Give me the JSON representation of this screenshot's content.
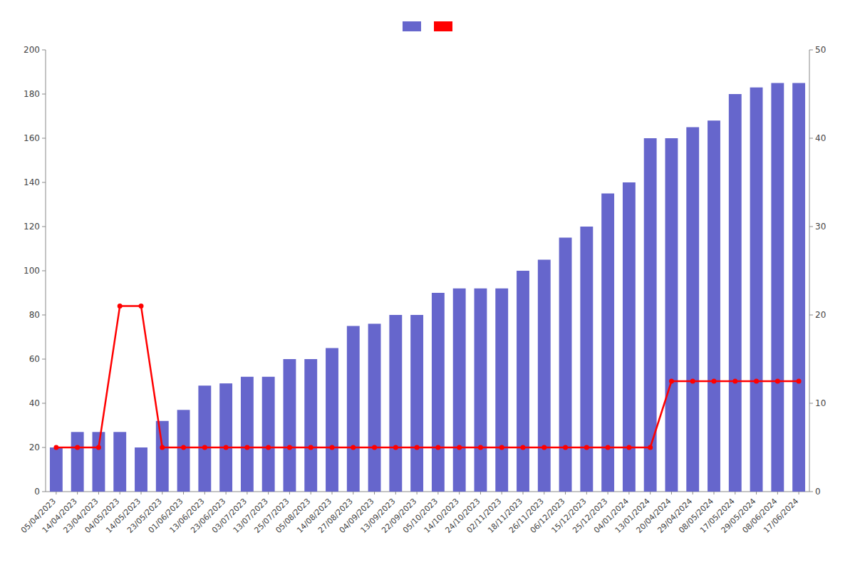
{
  "chart_data": {
    "type": "bar",
    "categories": [
      "05/04/2023",
      "14/04/2023",
      "23/04/2023",
      "04/05/2023",
      "14/05/2023",
      "23/05/2023",
      "01/06/2023",
      "13/06/2023",
      "23/06/2023",
      "03/07/2023",
      "13/07/2023",
      "25/07/2023",
      "05/08/2023",
      "14/08/2023",
      "27/08/2023",
      "04/09/2023",
      "13/09/2023",
      "22/09/2023",
      "05/10/2023",
      "14/10/2023",
      "24/10/2023",
      "02/11/2023",
      "18/11/2023",
      "26/11/2023",
      "06/12/2023",
      "15/12/2023",
      "25/12/2023",
      "04/01/2024",
      "13/01/2024",
      "20/04/2024",
      "29/04/2024",
      "08/05/2024",
      "17/05/2024",
      "29/05/2024",
      "08/06/2024",
      "17/06/2024"
    ],
    "series": [
      {
        "type": "bar",
        "color": "#6666cc",
        "values": [
          20,
          27,
          27,
          27,
          20,
          32,
          37,
          48,
          49,
          52,
          52,
          60,
          60,
          65,
          75,
          76,
          80,
          80,
          90,
          92,
          92,
          92,
          100,
          105,
          115,
          120,
          135,
          140,
          160,
          160,
          165,
          168,
          180,
          183,
          185,
          185
        ]
      },
      {
        "type": "line",
        "color": "#ff0000",
        "axis": "y2",
        "marker": "circle",
        "values": [
          5,
          5,
          5,
          21,
          21,
          5,
          5,
          5,
          5,
          5,
          5,
          5,
          5,
          5,
          5,
          5,
          5,
          5,
          5,
          5,
          5,
          5,
          5,
          5,
          5,
          5,
          5,
          5,
          5,
          12.5,
          12.5,
          12.5,
          12.5,
          12.5,
          12.5,
          12.5
        ]
      }
    ],
    "ylim": [
      0,
      200
    ],
    "yticks": [
      0,
      20,
      40,
      60,
      80,
      100,
      120,
      140,
      160,
      180,
      200
    ],
    "y2lim": [
      0,
      50
    ],
    "y2ticks": [
      0,
      10,
      20,
      30,
      40,
      50
    ],
    "grid": false,
    "legend": "top"
  }
}
